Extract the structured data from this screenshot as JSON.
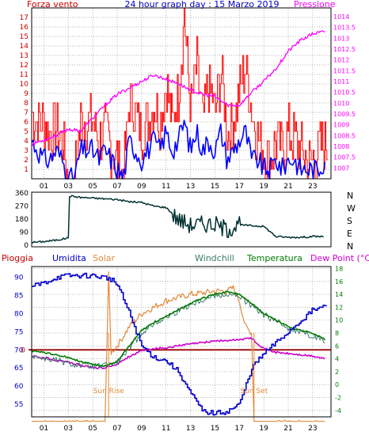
{
  "colors": {
    "wind": "#ff0000",
    "gust": "#0000ff",
    "pressure": "#ff00ff",
    "direction": "#003030",
    "humidity": "#0000cc",
    "solar": "#e08a3c",
    "windchill": "#3a7a6a",
    "temperature": "#007a00",
    "dewpoint": "#cc00cc",
    "rain": "#990000",
    "title": "#0000cc",
    "axis_red": "#cc0000",
    "zero": "#990000"
  },
  "chart_data": [
    {
      "type": "line",
      "title": "24 hour graph day : 15 Marzo 2019",
      "left_label": "Forza vento",
      "right_label": "Pressione",
      "x_tick_labels": [
        "01",
        "03",
        "05",
        "07",
        "09",
        "11",
        "13",
        "15",
        "17",
        "19",
        "21",
        "23"
      ],
      "y_left_ticks": [
        1,
        2,
        3,
        4,
        5,
        6,
        7,
        8,
        9,
        10,
        11,
        12,
        13,
        14,
        15,
        16,
        17
      ],
      "y_left_lim": [
        0,
        18
      ],
      "y_right_ticks": [
        "1007",
        "1007.5",
        "1008",
        "1008.5",
        "1009",
        "1009.5",
        "1010",
        "1010.5",
        "1011",
        "1011.5",
        "1012",
        "1012.5",
        "1013",
        "1013.5",
        "1014"
      ],
      "y_right_lim": [
        1006.5,
        1014.4
      ],
      "x_range": [
        0,
        24.5
      ],
      "series": [
        {
          "key": "pressure",
          "axis": "right",
          "x": [
            0,
            1,
            2,
            3,
            4,
            5,
            6,
            7,
            8,
            9,
            10,
            11,
            12,
            13,
            14,
            15,
            16,
            17,
            18,
            19,
            20,
            21,
            22,
            23,
            24
          ],
          "values": [
            1008.1,
            1008.3,
            1008.5,
            1008.8,
            1008.7,
            1009.3,
            1009.9,
            1010.4,
            1010.7,
            1011.0,
            1011.3,
            1011.1,
            1010.9,
            1010.6,
            1010.4,
            1010.3,
            1009.9,
            1009.9,
            1010.5,
            1011.0,
            1011.6,
            1012.4,
            1012.9,
            1013.2,
            1013.3
          ]
        },
        {
          "key": "wind",
          "axis": "left",
          "x": [
            0,
            0.5,
            1,
            1.5,
            2,
            2.5,
            3,
            3.5,
            4,
            4.5,
            5,
            5.5,
            6,
            6.5,
            7,
            7.5,
            8,
            8.5,
            9,
            9.5,
            10,
            10.5,
            11,
            11.5,
            12,
            12.5,
            13,
            13.5,
            14,
            14.5,
            15,
            15.5,
            16,
            16.5,
            17,
            17.5,
            18,
            18.5,
            19,
            19.5,
            20,
            20.5,
            21,
            21.5,
            22,
            22.5,
            23,
            23.5,
            24
          ],
          "values": [
            7,
            6,
            6,
            5,
            5,
            4,
            0,
            0,
            6,
            6,
            6,
            4,
            5,
            3,
            2,
            0,
            8,
            7,
            5,
            6,
            8,
            6,
            10,
            6,
            9,
            17,
            7,
            12,
            6,
            10,
            7,
            11,
            5,
            6,
            9,
            12,
            7,
            4,
            3,
            2,
            4,
            3,
            5,
            4,
            3,
            2,
            2,
            3,
            4
          ]
        },
        {
          "key": "gust",
          "axis": "left",
          "x": [
            0,
            0.5,
            1,
            1.5,
            2,
            2.5,
            3,
            3.5,
            4,
            4.5,
            5,
            5.5,
            6,
            6.5,
            7,
            7.5,
            8,
            8.5,
            9,
            9.5,
            10,
            10.5,
            11,
            11.5,
            12,
            12.5,
            13,
            13.5,
            14,
            14.5,
            15,
            15.5,
            16,
            16.5,
            17,
            17.5,
            18,
            18.5,
            19,
            19.5,
            20,
            20.5,
            21,
            21.5,
            22,
            22.5,
            23,
            23.5,
            24
          ],
          "values": [
            4,
            3,
            2,
            2,
            3,
            2,
            0,
            0,
            3,
            3,
            3,
            2,
            3,
            2,
            1,
            0,
            4,
            3,
            2,
            3,
            4,
            3,
            5,
            3,
            4,
            6,
            3,
            5,
            3,
            4,
            3,
            5,
            2,
            3,
            4,
            5,
            2,
            2,
            1,
            1,
            2,
            1,
            2,
            2,
            1,
            1,
            1,
            1,
            2
          ]
        }
      ]
    },
    {
      "type": "line",
      "y_tick_labels": [
        "360",
        "270",
        "180",
        "90",
        "0"
      ],
      "y_lim": [
        0,
        360
      ],
      "compass_labels": [
        "N",
        "W",
        "S",
        "E",
        "N"
      ],
      "x_range": [
        0,
        24.5
      ],
      "series": [
        {
          "key": "direction",
          "x": [
            0,
            1,
            2,
            3,
            3.1,
            4,
            5,
            6,
            7,
            8,
            9,
            10,
            11,
            12,
            13,
            14,
            15,
            16,
            17,
            18,
            19,
            20,
            21,
            22,
            23,
            24
          ],
          "values": [
            20,
            25,
            35,
            50,
            340,
            330,
            325,
            320,
            315,
            300,
            295,
            270,
            260,
            180,
            140,
            150,
            145,
            110,
            140,
            135,
            130,
            60,
            55,
            55,
            60,
            60
          ]
        }
      ]
    },
    {
      "type": "line",
      "legend": [
        "Pioggia",
        "Umidita",
        "Solar",
        "Windchill",
        "Temperatura",
        "Dew Point (°C)"
      ],
      "y_left_ticks": [
        55,
        60,
        65,
        70,
        75,
        80,
        85,
        90
      ],
      "y_left_lim": [
        51.5,
        93
      ],
      "y_right_ticks": [
        -4,
        -2,
        0,
        2,
        4,
        6,
        8,
        10,
        12,
        14,
        16,
        18
      ],
      "y_right_lim": [
        -5,
        18.3
      ],
      "rain_zero_label": "0",
      "x_range": [
        0,
        24.5
      ],
      "annotations": [
        "Sun Rise",
        "Sun Set"
      ],
      "sunrise_x": 6.3,
      "sunset_x": 18.2,
      "series": [
        {
          "key": "humidity",
          "axis": "left",
          "x": [
            0,
            1,
            2,
            3,
            4,
            5,
            6,
            6.5,
            7,
            8,
            9,
            10,
            11,
            12,
            13,
            14,
            15,
            16,
            17,
            18,
            19,
            20,
            21,
            22,
            23,
            24
          ],
          "values": [
            87.5,
            88.5,
            90,
            90.5,
            90.5,
            90.5,
            90,
            89.5,
            88,
            80,
            71,
            68,
            67,
            64,
            58,
            53,
            52.5,
            53,
            55,
            65,
            69,
            72,
            75,
            78,
            81,
            82
          ]
        },
        {
          "key": "temperature",
          "axis": "right",
          "x": [
            0,
            1,
            2,
            3,
            4,
            5,
            6,
            7,
            8,
            9,
            10,
            11,
            12,
            13,
            14,
            15,
            16,
            17,
            18,
            19,
            20,
            21,
            22,
            23,
            24
          ],
          "values": [
            5.2,
            5,
            4.6,
            4.2,
            3.6,
            3.1,
            2.9,
            3.6,
            6,
            8.4,
            9.6,
            10.6,
            11.6,
            12.6,
            13.4,
            14,
            14.4,
            14,
            12.6,
            11,
            10,
            9,
            8.4,
            8,
            7
          ]
        },
        {
          "key": "windchill",
          "axis": "right",
          "x": [
            0,
            1,
            2,
            3,
            4,
            5,
            6,
            7,
            8,
            9,
            10,
            11,
            12,
            13,
            14,
            15,
            16,
            17,
            18,
            19,
            20,
            21,
            22,
            23,
            24
          ],
          "values": [
            4.5,
            4,
            3.8,
            3.2,
            3,
            2.8,
            2.9,
            3.4,
            5.6,
            8,
            9.4,
            10.4,
            11.4,
            12.4,
            13.2,
            13.8,
            14,
            13.6,
            12.2,
            10.8,
            9.8,
            8.8,
            8.2,
            7.6,
            6.8
          ]
        },
        {
          "key": "dewpoint",
          "axis": "right",
          "x": [
            0,
            1,
            2,
            3,
            4,
            5,
            6,
            7,
            8,
            9,
            10,
            11,
            12,
            13,
            14,
            15,
            16,
            17,
            18,
            19,
            20,
            21,
            22,
            23,
            24
          ],
          "values": [
            4.4,
            4.2,
            3.8,
            3.5,
            3,
            2.6,
            2.6,
            3.2,
            4.4,
            5.2,
            5.6,
            5.7,
            6,
            6.3,
            6.5,
            6.8,
            6.8,
            7,
            7.2,
            5.6,
            5,
            4.8,
            4.6,
            4.4,
            4
          ]
        },
        {
          "key": "solar",
          "axis": "right",
          "x": [
            0,
            6,
            6.3,
            6.5,
            7,
            8,
            9,
            10,
            11,
            12,
            13,
            14,
            15,
            16,
            16.5,
            17,
            17.5,
            18,
            18.2,
            18.5,
            24
          ],
          "values": [
            -6,
            -6,
            17,
            5,
            6,
            9,
            11,
            12,
            13,
            13.5,
            14,
            14.2,
            14.5,
            14.5,
            15,
            13,
            9,
            8,
            -6,
            -6,
            -6
          ]
        }
      ]
    }
  ]
}
